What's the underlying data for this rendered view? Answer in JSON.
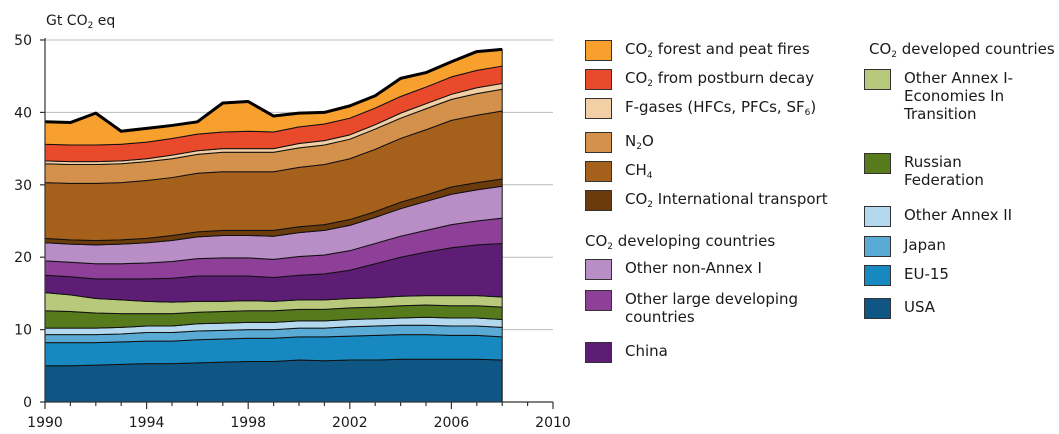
{
  "chart_data": {
    "type": "area",
    "stacked": true,
    "ylabel": "Gt CO2 eq",
    "ylim": [
      0,
      50
    ],
    "xlim": [
      1990,
      2010
    ],
    "yticks": [
      0,
      10,
      20,
      30,
      40,
      50
    ],
    "xticks": [
      1990,
      1994,
      1998,
      2002,
      2006,
      2010
    ],
    "grid": true,
    "x": [
      1990,
      1991,
      1992,
      1993,
      1994,
      1995,
      1996,
      1997,
      1998,
      1999,
      2000,
      2001,
      2002,
      2003,
      2004,
      2005,
      2006,
      2007,
      2008
    ],
    "series": [
      {
        "name": "USA",
        "color": "#0f5685",
        "values": [
          5.0,
          5.0,
          5.1,
          5.2,
          5.3,
          5.3,
          5.4,
          5.5,
          5.6,
          5.6,
          5.8,
          5.7,
          5.8,
          5.8,
          5.9,
          5.9,
          5.9,
          5.9,
          5.8
        ]
      },
      {
        "name": "EU-15",
        "color": "#1888c0",
        "values": [
          3.2,
          3.2,
          3.1,
          3.1,
          3.1,
          3.1,
          3.2,
          3.2,
          3.2,
          3.2,
          3.2,
          3.3,
          3.3,
          3.4,
          3.4,
          3.4,
          3.3,
          3.3,
          3.2
        ]
      },
      {
        "name": "Japan",
        "color": "#5aaad6",
        "values": [
          1.1,
          1.1,
          1.1,
          1.1,
          1.2,
          1.2,
          1.2,
          1.2,
          1.2,
          1.2,
          1.2,
          1.2,
          1.3,
          1.3,
          1.3,
          1.3,
          1.3,
          1.3,
          1.3
        ]
      },
      {
        "name": "Other Annex II",
        "color": "#b4d9ee",
        "values": [
          0.9,
          0.9,
          0.9,
          0.9,
          0.9,
          0.9,
          1.0,
          1.0,
          1.0,
          1.0,
          1.0,
          1.0,
          1.0,
          1.0,
          1.0,
          1.1,
          1.1,
          1.1,
          1.1
        ]
      },
      {
        "name": "Russian Federation",
        "color": "#567a1c",
        "values": [
          2.4,
          2.3,
          2.1,
          1.9,
          1.7,
          1.7,
          1.6,
          1.6,
          1.6,
          1.6,
          1.6,
          1.6,
          1.6,
          1.6,
          1.7,
          1.7,
          1.7,
          1.7,
          1.7
        ]
      },
      {
        "name": "Other Annex I-Economies In Transition",
        "color": "#b8c97c",
        "values": [
          2.5,
          2.3,
          2.0,
          1.9,
          1.7,
          1.6,
          1.5,
          1.4,
          1.4,
          1.3,
          1.3,
          1.3,
          1.3,
          1.3,
          1.3,
          1.3,
          1.4,
          1.4,
          1.4
        ]
      },
      {
        "name": "China",
        "color": "#5e1d75",
        "values": [
          2.4,
          2.5,
          2.7,
          2.9,
          3.1,
          3.3,
          3.5,
          3.5,
          3.4,
          3.3,
          3.4,
          3.6,
          3.9,
          4.7,
          5.4,
          6.0,
          6.6,
          7.0,
          7.4
        ]
      },
      {
        "name": "Other large developing countries",
        "color": "#8e3f98",
        "values": [
          2.0,
          2.0,
          2.1,
          2.1,
          2.2,
          2.3,
          2.4,
          2.5,
          2.5,
          2.5,
          2.6,
          2.6,
          2.7,
          2.8,
          2.9,
          3.0,
          3.2,
          3.3,
          3.5
        ]
      },
      {
        "name": "Other non-Annex I",
        "color": "#b98ec7",
        "values": [
          2.5,
          2.5,
          2.6,
          2.7,
          2.8,
          2.9,
          3.0,
          3.1,
          3.1,
          3.2,
          3.3,
          3.4,
          3.5,
          3.6,
          3.8,
          4.0,
          4.2,
          4.3,
          4.4
        ]
      },
      {
        "name": "CO2 International transport",
        "color": "#6b3b0c",
        "values": [
          0.6,
          0.6,
          0.6,
          0.6,
          0.6,
          0.7,
          0.7,
          0.7,
          0.7,
          0.8,
          0.8,
          0.8,
          0.8,
          0.8,
          0.9,
          0.9,
          1.0,
          1.0,
          1.0
        ]
      },
      {
        "name": "CH4",
        "color": "#a5611b",
        "values": [
          7.7,
          7.8,
          7.9,
          7.9,
          8.0,
          8.0,
          8.1,
          8.1,
          8.1,
          8.1,
          8.2,
          8.3,
          8.4,
          8.6,
          8.8,
          9.0,
          9.2,
          9.3,
          9.4
        ]
      },
      {
        "name": "N2O",
        "color": "#d3914c",
        "values": [
          2.6,
          2.6,
          2.6,
          2.6,
          2.6,
          2.6,
          2.6,
          2.7,
          2.7,
          2.7,
          2.7,
          2.7,
          2.7,
          2.8,
          2.8,
          2.9,
          2.9,
          3.0,
          3.0
        ]
      },
      {
        "name": "F-gases (HFCs, PFCs, SF6)",
        "color": "#f2cfa4",
        "values": [
          0.4,
          0.4,
          0.4,
          0.4,
          0.4,
          0.5,
          0.5,
          0.5,
          0.5,
          0.5,
          0.6,
          0.6,
          0.6,
          0.6,
          0.7,
          0.7,
          0.7,
          0.8,
          0.8
        ]
      },
      {
        "name": "CO2 from postburn decay",
        "color": "#ea4a2c",
        "values": [
          2.3,
          2.3,
          2.3,
          2.3,
          2.3,
          2.3,
          2.3,
          2.3,
          2.4,
          2.3,
          2.3,
          2.3,
          2.3,
          2.3,
          2.3,
          2.3,
          2.4,
          2.4,
          2.4
        ]
      },
      {
        "name": "CO2 forest and peat fires",
        "color": "#f7a02e",
        "values": [
          3.1,
          3.1,
          4.4,
          1.8,
          1.9,
          1.8,
          1.7,
          4.0,
          4.1,
          2.2,
          1.9,
          1.6,
          1.7,
          1.7,
          2.5,
          2.0,
          2.1,
          2.6,
          2.3
        ]
      }
    ]
  },
  "legend": {
    "col1_items": [
      {
        "html": "CO<sub>2</sub> forest and peat fires",
        "color": "#f7a02e"
      },
      {
        "html": "CO<sub>2</sub> from postburn decay",
        "color": "#ea4a2c"
      },
      {
        "html": "F-gases (HFCs, PFCs, SF<sub>6</sub>)",
        "color": "#f2cfa4"
      },
      {
        "html": "N<sub>2</sub>O",
        "color": "#d3914c"
      },
      {
        "html": "CH<sub>4</sub>",
        "color": "#a5611b"
      },
      {
        "html": "CO<sub>2</sub> International transport",
        "color": "#6b3b0c"
      }
    ],
    "developing_heading": "CO<sub>2</sub> developing countries",
    "developing_items": [
      {
        "html": "Other non-Annex I",
        "color": "#b98ec7"
      },
      {
        "html": "Other large developing countries",
        "color": "#8e3f98"
      },
      {
        "html": "China",
        "color": "#5e1d75"
      }
    ],
    "developed_heading": "CO<sub>2</sub> developed countries",
    "developed_items": [
      {
        "html": "Other Annex I-Economies In Transition",
        "color": "#b8c97c"
      },
      {
        "html": "Russian Federation",
        "color": "#567a1c"
      },
      {
        "html": "Other Annex II",
        "color": "#b4d9ee"
      },
      {
        "html": "Japan",
        "color": "#5aaad6"
      },
      {
        "html": "EU-15",
        "color": "#1888c0"
      },
      {
        "html": "USA",
        "color": "#0f5685"
      }
    ]
  }
}
